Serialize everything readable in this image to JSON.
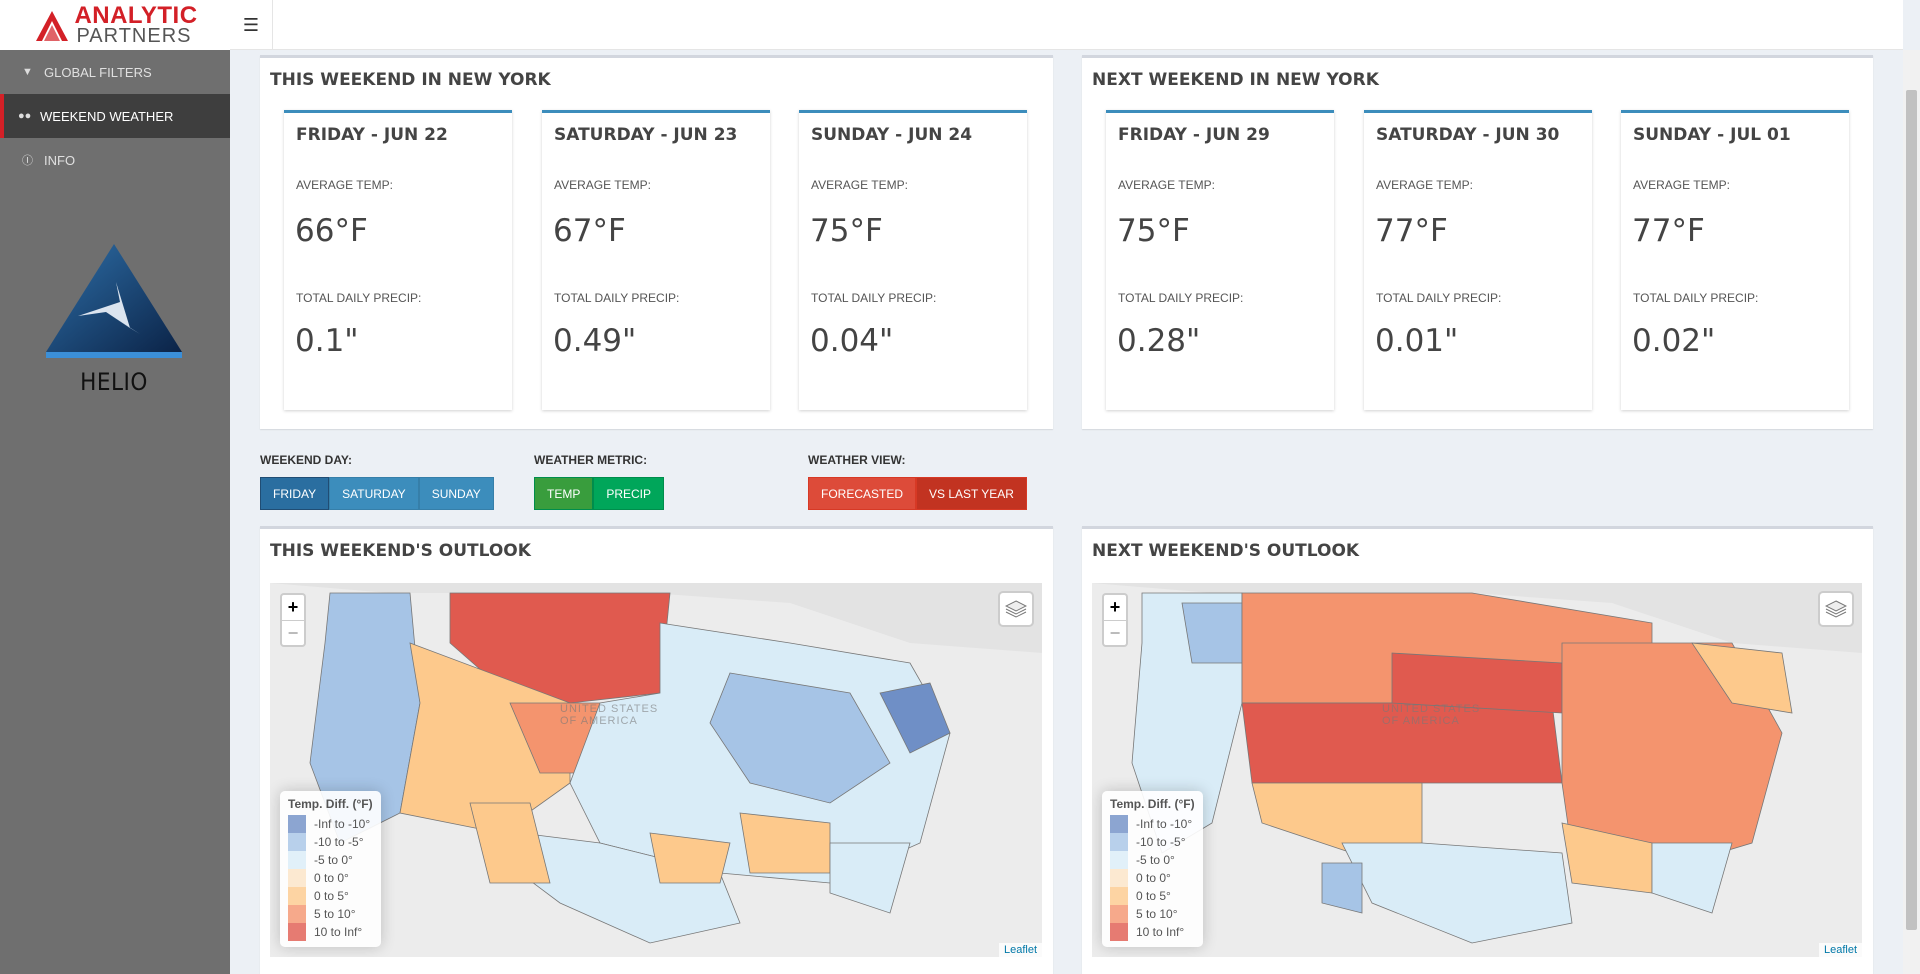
{
  "brand": {
    "line1": "ANALYTIC",
    "line2": "PARTNERS",
    "product": "HELIO"
  },
  "sidebar": {
    "items": [
      {
        "label": "GLOBAL FILTERS",
        "icon": "filter-icon"
      },
      {
        "label": "WEEKEND WEATHER",
        "icon": "binoculars-icon"
      },
      {
        "label": "INFO",
        "icon": "info-icon"
      }
    ]
  },
  "this_weekend": {
    "title": "THIS WEEKEND IN NEW YORK",
    "days": [
      {
        "title": "FRIDAY - JUN 22",
        "temp_label": "AVERAGE TEMP:",
        "temp": "66°F",
        "precip_label": "TOTAL DAILY PRECIP:",
        "precip": "0.1\""
      },
      {
        "title": "SATURDAY - JUN 23",
        "temp_label": "AVERAGE TEMP:",
        "temp": "67°F",
        "precip_label": "TOTAL DAILY PRECIP:",
        "precip": "0.49\""
      },
      {
        "title": "SUNDAY - JUN 24",
        "temp_label": "AVERAGE TEMP:",
        "temp": "75°F",
        "precip_label": "TOTAL DAILY PRECIP:",
        "precip": "0.04\""
      }
    ]
  },
  "next_weekend": {
    "title": "NEXT WEEKEND IN NEW YORK",
    "days": [
      {
        "title": "FRIDAY - JUN 29",
        "temp_label": "AVERAGE TEMP:",
        "temp": "75°F",
        "precip_label": "TOTAL DAILY PRECIP:",
        "precip": "0.28\""
      },
      {
        "title": "SATURDAY - JUN 30",
        "temp_label": "AVERAGE TEMP:",
        "temp": "77°F",
        "precip_label": "TOTAL DAILY PRECIP:",
        "precip": "0.01\""
      },
      {
        "title": "SUNDAY - JUL 01",
        "temp_label": "AVERAGE TEMP:",
        "temp": "77°F",
        "precip_label": "TOTAL DAILY PRECIP:",
        "precip": "0.02\""
      }
    ]
  },
  "controls": {
    "weekend_day": {
      "label": "WEEKEND DAY:",
      "options": [
        "FRIDAY",
        "SATURDAY",
        "SUNDAY"
      ],
      "selected": "FRIDAY"
    },
    "weather_metric": {
      "label": "WEATHER METRIC:",
      "options": [
        "TEMP",
        "PRECIP"
      ],
      "selected": "TEMP"
    },
    "weather_view": {
      "label": "WEATHER VIEW:",
      "options": [
        "FORECASTED",
        "VS LAST YEAR"
      ],
      "selected": "VS LAST YEAR"
    }
  },
  "outlook": {
    "this_title": "THIS WEEKEND'S OUTLOOK",
    "next_title": "NEXT WEEKEND'S OUTLOOK",
    "zoom_in": "+",
    "zoom_out": "−",
    "attribution": "Leaflet",
    "map_label": "UNITED STATES OF AMERICA",
    "legend": {
      "title": "Temp. Diff. (°F)",
      "entries": [
        {
          "label": "-Inf to -10°",
          "color": "#6f8fc6"
        },
        {
          "label": "-10 to -5°",
          "color": "#a6c4e6"
        },
        {
          "label": "-5 to 0°",
          "color": "#d9ecf7"
        },
        {
          "label": "0 to 0°",
          "color": "#fbe3c6"
        },
        {
          "label": "0 to 5°",
          "color": "#fdc98c"
        },
        {
          "label": "5 to 10°",
          "color": "#f4946e"
        },
        {
          "label": "10 to Inf°",
          "color": "#e05a4f"
        }
      ]
    }
  }
}
